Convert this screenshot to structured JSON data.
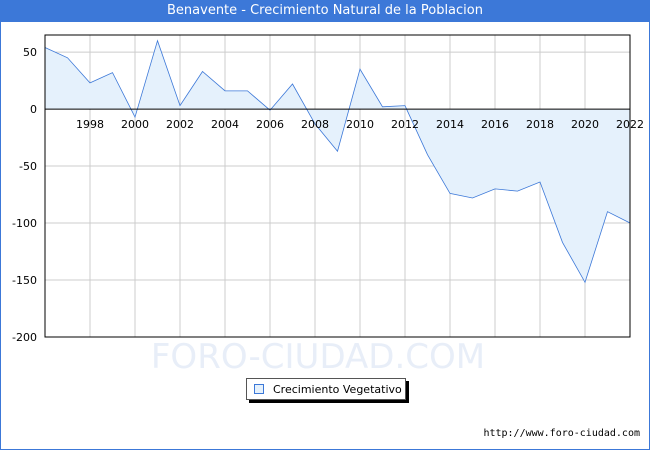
{
  "title": "Benavente - Crecimiento Natural de la Poblacion",
  "watermark": "FORO-CIUDAD.COM",
  "source_url": "http://www.foro-ciudad.com",
  "colors": {
    "header": "#3c78d8",
    "line": "#3c78d8",
    "fill": "#e5f1fc",
    "grid": "#cccccc"
  },
  "chart_data": {
    "type": "area",
    "title": "Benavente - Crecimiento Natural de la Poblacion",
    "xlabel": "",
    "ylabel": "",
    "xlim": [
      1996,
      2022
    ],
    "ylim": [
      -200,
      65
    ],
    "x_ticks": [
      1998,
      2000,
      2002,
      2004,
      2006,
      2008,
      2010,
      2012,
      2014,
      2016,
      2018,
      2020,
      2022
    ],
    "y_ticks": [
      50,
      0,
      -50,
      -100,
      -150,
      -200
    ],
    "grid": true,
    "legend": "bottom-center",
    "series": [
      {
        "name": "Crecimiento Vegetativo",
        "x": [
          1996,
          1997,
          1998,
          1999,
          2000,
          2001,
          2002,
          2003,
          2004,
          2005,
          2006,
          2007,
          2008,
          2009,
          2010,
          2011,
          2012,
          2013,
          2014,
          2015,
          2016,
          2017,
          2018,
          2019,
          2020,
          2021,
          2022
        ],
        "values": [
          54,
          45,
          23,
          32,
          -7,
          60,
          3,
          33,
          16,
          16,
          -1,
          22,
          -13,
          -37,
          35,
          2,
          3,
          -40,
          -74,
          -78,
          -70,
          -72,
          -64,
          -117,
          -152,
          -90,
          -100
        ]
      }
    ]
  }
}
